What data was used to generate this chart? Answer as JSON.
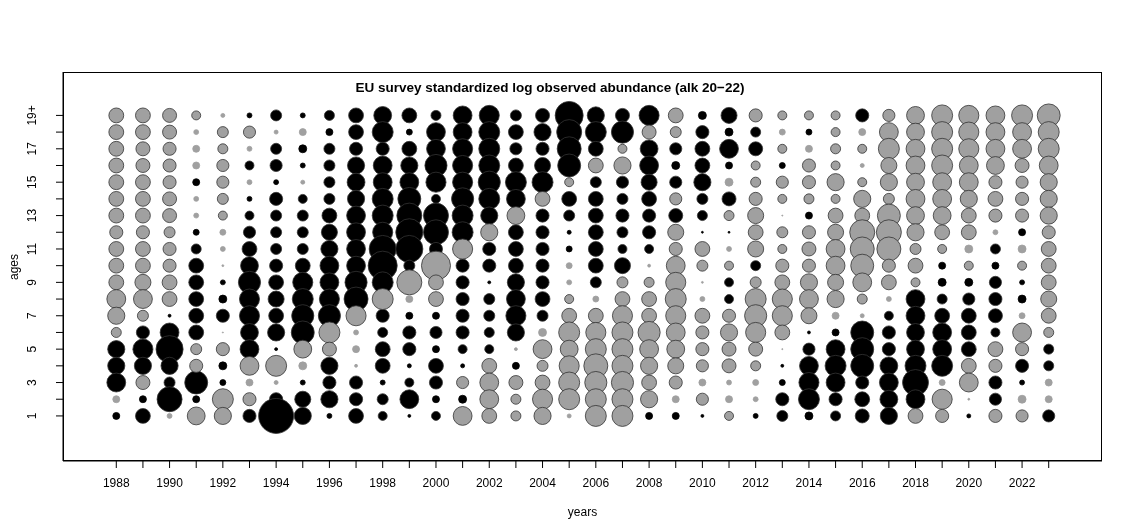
{
  "chart_data": {
    "type": "bubble",
    "title": "EU survey standardized log observed abundance (alk 20−22)",
    "xlabel": "years",
    "ylabel": "ages",
    "xlim": [
      1986,
      2025
    ],
    "xticks": [
      1988,
      {
        "value": 1989,
        "label": null
      },
      1990,
      {
        "value": 1991,
        "label": null
      },
      1992,
      {
        "value": 1993,
        "label": null
      },
      1994,
      {
        "value": 1995,
        "label": null
      },
      1996,
      {
        "value": 1997,
        "label": null
      },
      1998,
      {
        "value": 1999,
        "label": null
      },
      2000,
      {
        "value": 2001,
        "label": null
      },
      2002,
      {
        "value": 2003,
        "label": null
      },
      2004,
      {
        "value": 2005,
        "label": null
      },
      2006,
      {
        "value": 2007,
        "label": null
      },
      2008,
      {
        "value": 2009,
        "label": null
      },
      2010,
      {
        "value": 2011,
        "label": null
      },
      2012,
      {
        "value": 2013,
        "label": null
      },
      2014,
      {
        "value": 2015,
        "label": null
      },
      2016,
      {
        "value": 2017,
        "label": null
      },
      2018,
      {
        "value": 2019,
        "label": null
      },
      2020,
      {
        "value": 2021,
        "label": null
      },
      2022,
      {
        "value": 2023,
        "label": null
      }
    ],
    "ylim": [
      -1.7,
      21.6
    ],
    "yticks": [
      1,
      {
        "value": 2,
        "label": null
      },
      3,
      {
        "value": 4,
        "label": null
      },
      5,
      {
        "value": 6,
        "label": null
      },
      7,
      {
        "value": 8,
        "label": null
      },
      9,
      {
        "value": 10,
        "label": null
      },
      11,
      {
        "value": 12,
        "label": null
      },
      13,
      {
        "value": 14,
        "label": null
      },
      15,
      {
        "value": 16,
        "label": null
      },
      17,
      {
        "value": 18,
        "label": null
      },
      {
        "value": 19,
        "label": "19+"
      }
    ],
    "marker": "circle",
    "series": [
      {
        "color": "#000000",
        "x": [
          1988,
          1988,
          1988,
          1988,
          1989,
          1989,
          1989,
          1989,
          1989,
          1990,
          1990,
          1990,
          1990,
          1990,
          1990,
          1991,
          1991,
          1991,
          1991,
          1991,
          1991,
          1991,
          1991,
          1991,
          1991,
          1992,
          1992,
          1992,
          1992,
          1992,
          1993,
          1993,
          1993,
          1993,
          1993,
          1993,
          1993,
          1993,
          1993,
          1993,
          1993,
          1993,
          1993,
          1994,
          1994,
          1994,
          1994,
          1994,
          1994,
          1994,
          1994,
          1994,
          1994,
          1994,
          1994,
          1994,
          1994,
          1994,
          1994,
          1995,
          1995,
          1995,
          1995,
          1995,
          1995,
          1995,
          1995,
          1995,
          1995,
          1995,
          1995,
          1995,
          1995,
          1995,
          1996,
          1996,
          1996,
          1996,
          1996,
          1996,
          1996,
          1996,
          1996,
          1996,
          1996,
          1996,
          1996,
          1996,
          1996,
          1996,
          1996,
          1997,
          1997,
          1997,
          1997,
          1997,
          1997,
          1997,
          1997,
          1997,
          1997,
          1997,
          1997,
          1997,
          1997,
          1997,
          1998,
          1998,
          1998,
          1998,
          1998,
          1998,
          1998,
          1998,
          1998,
          1998,
          1998,
          1998,
          1998,
          1998,
          1998,
          1998,
          1998,
          1998,
          1999,
          1999,
          1999,
          1999,
          1999,
          1999,
          1999,
          1999,
          1999,
          1999,
          1999,
          1999,
          1999,
          1999,
          1999,
          1999,
          1999,
          2000,
          2000,
          2000,
          2000,
          2000,
          2000,
          2000,
          2000,
          2000,
          2000,
          2000,
          2000,
          2000,
          2000,
          2000,
          2000,
          2001,
          2001,
          2001,
          2001,
          2001,
          2001,
          2001,
          2001,
          2001,
          2001,
          2001,
          2001,
          2001,
          2001,
          2001,
          2001,
          2002,
          2002,
          2002,
          2002,
          2002,
          2002,
          2002,
          2002,
          2002,
          2002,
          2002,
          2002,
          2002,
          2002,
          2003,
          2003,
          2003,
          2003,
          2003,
          2003,
          2003,
          2003,
          2003,
          2003,
          2003,
          2003,
          2003,
          2003,
          2004,
          2004,
          2004,
          2004,
          2004,
          2004,
          2004,
          2004,
          2004,
          2004,
          2004,
          2004,
          2005,
          2005,
          2005,
          2005,
          2005,
          2005,
          2005,
          2005,
          2006,
          2006,
          2006,
          2006,
          2006,
          2006,
          2006,
          2006,
          2006,
          2006,
          2007,
          2007,
          2007,
          2007,
          2007,
          2007,
          2007,
          2007,
          2008,
          2008,
          2008,
          2008,
          2008,
          2008,
          2008,
          2008,
          2008,
          2009,
          2009,
          2009,
          2009,
          2009,
          2010,
          2010,
          2010,
          2010,
          2010,
          2010,
          2010,
          2010,
          2010,
          2011,
          2011,
          2011,
          2011,
          2011,
          2011,
          2011,
          2011,
          2012,
          2012,
          2012,
          2012,
          2013,
          2013,
          2013,
          2013,
          2013,
          2014,
          2014,
          2014,
          2014,
          2014,
          2014,
          2014,
          2014,
          2015,
          2015,
          2015,
          2015,
          2015,
          2015,
          2016,
          2016,
          2016,
          2016,
          2016,
          2016,
          2016,
          2017,
          2017,
          2017,
          2017,
          2017,
          2017,
          2017,
          2018,
          2018,
          2018,
          2018,
          2018,
          2018,
          2018,
          2019,
          2019,
          2019,
          2019,
          2019,
          2019,
          2019,
          2020,
          2020,
          2020,
          2020,
          2020,
          2020,
          2021,
          2021,
          2021,
          2021,
          2021,
          2021,
          2021,
          2021,
          2022,
          2022,
          2022,
          2022,
          2022,
          2023,
          2023,
          2023
        ],
        "values": [
          5,
          4,
          3,
          1,
          6,
          5,
          4,
          2,
          1,
          7,
          6,
          5,
          4,
          3,
          2,
          15,
          12,
          11,
          10,
          9,
          8,
          7,
          6,
          3,
          2,
          9,
          8,
          7,
          4,
          3,
          19,
          16,
          14,
          13,
          12,
          11,
          10,
          9,
          8,
          7,
          6,
          5,
          1,
          19,
          17,
          16,
          15,
          14,
          13,
          12,
          11,
          10,
          9,
          8,
          7,
          6,
          5,
          2,
          1,
          19,
          17,
          16,
          14,
          13,
          12,
          11,
          10,
          9,
          8,
          7,
          6,
          3,
          2,
          1,
          19,
          18,
          17,
          16,
          15,
          14,
          13,
          12,
          11,
          10,
          9,
          8,
          7,
          4,
          3,
          2,
          1,
          19,
          18,
          17,
          16,
          15,
          14,
          13,
          12,
          11,
          10,
          9,
          8,
          3,
          2,
          1,
          19,
          18,
          17,
          16,
          15,
          14,
          13,
          12,
          11,
          10,
          9,
          7,
          6,
          5,
          4,
          3,
          2,
          1,
          19,
          18,
          17,
          16,
          15,
          14,
          13,
          12,
          11,
          10,
          7,
          6,
          5,
          4,
          3,
          2,
          1,
          19,
          18,
          17,
          16,
          15,
          14,
          13,
          12,
          11,
          7,
          6,
          5,
          4,
          3,
          2,
          1,
          19,
          18,
          17,
          16,
          15,
          14,
          13,
          12,
          10,
          9,
          8,
          7,
          6,
          5,
          4,
          2,
          19,
          18,
          17,
          16,
          15,
          14,
          13,
          11,
          10,
          9,
          8,
          7,
          6,
          5,
          19,
          18,
          17,
          16,
          15,
          14,
          12,
          11,
          10,
          9,
          8,
          7,
          6,
          4,
          19,
          18,
          17,
          16,
          15,
          13,
          12,
          11,
          10,
          9,
          8,
          7,
          19,
          18,
          17,
          16,
          14,
          13,
          12,
          11,
          19,
          18,
          17,
          15,
          14,
          13,
          12,
          11,
          10,
          9,
          19,
          18,
          15,
          14,
          13,
          12,
          11,
          10,
          19,
          17,
          16,
          15,
          14,
          13,
          12,
          11,
          1,
          17,
          16,
          15,
          13,
          1,
          19,
          18,
          17,
          16,
          15,
          14,
          13,
          12,
          1,
          19,
          18,
          17,
          16,
          14,
          12,
          9,
          8,
          18,
          17,
          10,
          1,
          16,
          4,
          3,
          2,
          1,
          18,
          13,
          6,
          5,
          4,
          3,
          2,
          1,
          6,
          5,
          4,
          3,
          2,
          1,
          19,
          6,
          5,
          4,
          3,
          2,
          1,
          7,
          6,
          5,
          4,
          3,
          2,
          1,
          8,
          7,
          6,
          5,
          4,
          3,
          2,
          10,
          9,
          8,
          7,
          6,
          5,
          4,
          9,
          8,
          7,
          6,
          5,
          1,
          11,
          10,
          9,
          8,
          7,
          6,
          3,
          2,
          12,
          9,
          8,
          4,
          3,
          5,
          4,
          1
        ],
        "sizes": [
          0.24,
          0.24,
          0.29,
          0.04,
          0.14,
          0.33,
          0.24,
          0.04,
          0.18,
          0.007,
          0.29,
          0.6,
          0.24,
          0.099,
          0.51,
          0.04,
          0.029,
          0.082,
          0.18,
          0.18,
          0.18,
          0.18,
          0.18,
          0.43,
          0.04,
          0.02,
          0.052,
          0.14,
          0.052,
          0.029,
          0.02,
          0.066,
          0.02,
          0.066,
          0.12,
          0.18,
          0.26,
          0.4,
          0.33,
          0.33,
          0.26,
          0.29,
          0.14,
          0.099,
          0.099,
          0.12,
          0.02,
          0.14,
          0.099,
          0.099,
          0.099,
          0.14,
          0.18,
          0.21,
          0.18,
          0.24,
          0.007,
          0.14,
          1,
          0.02,
          0.052,
          0.02,
          0.066,
          0.099,
          0.099,
          0.099,
          0.18,
          0.33,
          0.36,
          0.4,
          0.43,
          0.02,
          0.21,
          0.24,
          0.082,
          0.04,
          0.099,
          0.099,
          0.099,
          0.099,
          0.18,
          0.21,
          0.24,
          0.29,
          0.29,
          0.33,
          0.4,
          0.24,
          0.14,
          0.24,
          0.02,
          0.18,
          0.18,
          0.14,
          0.24,
          0.26,
          0.24,
          0.29,
          0.29,
          0.29,
          0.29,
          0.4,
          0.47,
          0.14,
          0.14,
          0.18,
          0.26,
          0.36,
          0.14,
          0.29,
          0.29,
          0.36,
          0.36,
          0.33,
          0.6,
          0.69,
          0.36,
          0.14,
          0.082,
          0.18,
          0.18,
          0.02,
          0.099,
          0.066,
          0.18,
          0.029,
          0.18,
          0.24,
          0.29,
          0.43,
          0.51,
          0.6,
          0.6,
          0.099,
          0.04,
          0.14,
          0.14,
          0.013,
          0.066,
          0.29,
          0.007,
          0.082,
          0.29,
          0.29,
          0.4,
          0.33,
          0.066,
          0.51,
          0.51,
          0.14,
          0.04,
          0.12,
          0.04,
          0.18,
          0.14,
          0.04,
          0.066,
          0.29,
          0.29,
          0.33,
          0.33,
          0.33,
          0.4,
          0.36,
          0.36,
          0.14,
          0.14,
          0.14,
          0.14,
          0.14,
          0.066,
          0.013,
          0.052,
          0.33,
          0.36,
          0.36,
          0.36,
          0.4,
          0.36,
          0.24,
          0.14,
          0.14,
          0.007,
          0.099,
          0.099,
          0.082,
          0.066,
          0.099,
          0.18,
          0.12,
          0.18,
          0.36,
          0.29,
          0.18,
          0.18,
          0.18,
          0.24,
          0.29,
          0.33,
          0.24,
          0.04,
          0.16,
          0.24,
          0.14,
          0.21,
          0.36,
          0.14,
          0.14,
          0.14,
          0.14,
          0.14,
          0.18,
          0.099,
          0.64,
          0.51,
          0.47,
          0.43,
          0.18,
          0.099,
          0.013,
          0.029,
          0.24,
          0.36,
          0.18,
          0.099,
          0.18,
          0.18,
          0.18,
          0.18,
          0.18,
          0.099,
          0.16,
          0.4,
          0.12,
          0.099,
          0.14,
          0.099,
          0.066,
          0.21,
          0.33,
          0.26,
          0.29,
          0.21,
          0.18,
          0.14,
          0.14,
          0.066,
          0.04,
          0.12,
          0.052,
          0.12,
          0.16,
          0.04,
          0.052,
          0.14,
          0.18,
          0.18,
          0.24,
          0.099,
          0.082,
          0.003,
          0.007,
          0.21,
          0.052,
          0.29,
          0.04,
          0.16,
          0.003,
          0.066,
          0.066,
          0.082,
          0.16,
          0.082,
          0.02,
          0.029,
          0.007,
          0.029,
          0.14,
          0.099,
          0.029,
          0.04,
          0.007,
          0.12,
          0.29,
          0.33,
          0.36,
          0.052,
          0.04,
          0.29,
          0.36,
          0.29,
          0.14,
          0.082,
          0.14,
          0.43,
          0.43,
          0.43,
          0.14,
          0.18,
          0.16,
          0.066,
          0.14,
          0.14,
          0.26,
          0.29,
          0.26,
          0.24,
          0.29,
          0.29,
          0.26,
          0.26,
          0.36,
          0.55,
          0.29,
          0.04,
          0.052,
          0.082,
          0.18,
          0.29,
          0.29,
          0.36,
          0.052,
          0.12,
          0.18,
          0.18,
          0.18,
          0.013,
          0.082,
          0.04,
          0.12,
          0.14,
          0.16,
          0.066,
          0.14,
          0.12,
          0.04,
          0.02,
          0.052,
          0.14,
          0.02,
          0.082,
          0.082,
          0.12
        ]
      },
      {
        "color": "#a0a0a0",
        "x": [
          1988,
          1988,
          1988,
          1988,
          1988,
          1988,
          1988,
          1988,
          1988,
          1988,
          1988,
          1988,
          1988,
          1988,
          1988,
          1989,
          1989,
          1989,
          1989,
          1989,
          1989,
          1989,
          1989,
          1989,
          1989,
          1989,
          1989,
          1989,
          1989,
          1990,
          1990,
          1990,
          1990,
          1990,
          1990,
          1990,
          1990,
          1990,
          1990,
          1990,
          1990,
          1990,
          1991,
          1991,
          1991,
          1991,
          1991,
          1991,
          1991,
          1991,
          1991,
          1992,
          1992,
          1992,
          1992,
          1992,
          1992,
          1992,
          1992,
          1992,
          1992,
          1992,
          1992,
          1992,
          1992,
          1993,
          1993,
          1993,
          1993,
          1993,
          1993,
          1994,
          1994,
          1994,
          1995,
          1995,
          1995,
          1995,
          1996,
          1996,
          1997,
          1997,
          1997,
          1997,
          1998,
          1999,
          1999,
          2000,
          2000,
          2000,
          2001,
          2001,
          2001,
          2002,
          2002,
          2002,
          2002,
          2002,
          2003,
          2003,
          2003,
          2003,
          2003,
          2004,
          2004,
          2004,
          2004,
          2004,
          2004,
          2004,
          2005,
          2005,
          2005,
          2005,
          2005,
          2005,
          2005,
          2005,
          2005,
          2005,
          2005,
          2006,
          2006,
          2006,
          2006,
          2006,
          2006,
          2006,
          2006,
          2006,
          2007,
          2007,
          2007,
          2007,
          2007,
          2007,
          2007,
          2007,
          2007,
          2007,
          2007,
          2008,
          2008,
          2008,
          2008,
          2008,
          2008,
          2008,
          2008,
          2008,
          2008,
          2009,
          2009,
          2009,
          2009,
          2009,
          2009,
          2009,
          2009,
          2009,
          2009,
          2009,
          2009,
          2009,
          2009,
          2010,
          2010,
          2010,
          2010,
          2010,
          2010,
          2010,
          2010,
          2010,
          2010,
          2011,
          2011,
          2011,
          2011,
          2011,
          2011,
          2011,
          2011,
          2011,
          2011,
          2011,
          2012,
          2012,
          2012,
          2012,
          2012,
          2012,
          2012,
          2012,
          2012,
          2012,
          2012,
          2012,
          2012,
          2012,
          2012,
          2013,
          2013,
          2013,
          2013,
          2013,
          2013,
          2013,
          2013,
          2013,
          2013,
          2013,
          2013,
          2013,
          2013,
          2014,
          2014,
          2014,
          2014,
          2014,
          2014,
          2014,
          2014,
          2014,
          2014,
          2014,
          2015,
          2015,
          2015,
          2015,
          2015,
          2015,
          2015,
          2015,
          2015,
          2015,
          2015,
          2015,
          2015,
          2016,
          2016,
          2016,
          2016,
          2016,
          2016,
          2016,
          2016,
          2016,
          2016,
          2016,
          2016,
          2017,
          2017,
          2017,
          2017,
          2017,
          2017,
          2017,
          2017,
          2017,
          2017,
          2017,
          2017,
          2018,
          2018,
          2018,
          2018,
          2018,
          2018,
          2018,
          2018,
          2018,
          2018,
          2018,
          2018,
          2019,
          2019,
          2019,
          2019,
          2019,
          2019,
          2019,
          2019,
          2019,
          2019,
          2019,
          2019,
          2020,
          2020,
          2020,
          2020,
          2020,
          2020,
          2020,
          2020,
          2020,
          2020,
          2020,
          2020,
          2020,
          2021,
          2021,
          2021,
          2021,
          2021,
          2021,
          2021,
          2021,
          2021,
          2021,
          2021,
          2022,
          2022,
          2022,
          2022,
          2022,
          2022,
          2022,
          2022,
          2022,
          2022,
          2022,
          2022,
          2022,
          2022,
          2023,
          2023,
          2023,
          2023,
          2023,
          2023,
          2023,
          2023,
          2023,
          2023,
          2023,
          2023,
          2023,
          2023,
          2023,
          2023
        ],
        "values": [
          19,
          18,
          17,
          16,
          15,
          14,
          13,
          12,
          11,
          10,
          9,
          8,
          7,
          6,
          2,
          19,
          18,
          17,
          16,
          15,
          14,
          13,
          12,
          11,
          10,
          9,
          8,
          7,
          3,
          19,
          18,
          17,
          16,
          15,
          14,
          13,
          12,
          11,
          10,
          9,
          8,
          1,
          19,
          18,
          17,
          16,
          14,
          13,
          5,
          4,
          1,
          19,
          18,
          17,
          16,
          15,
          14,
          13,
          12,
          11,
          10,
          6,
          5,
          2,
          1,
          18,
          17,
          15,
          4,
          3,
          2,
          18,
          4,
          3,
          18,
          15,
          5,
          4,
          6,
          5,
          7,
          6,
          5,
          4,
          8,
          9,
          8,
          10,
          9,
          8,
          11,
          3,
          1,
          12,
          4,
          3,
          2,
          1,
          13,
          5,
          3,
          2,
          1,
          14,
          6,
          5,
          4,
          3,
          2,
          1,
          15,
          10,
          9,
          8,
          7,
          6,
          5,
          4,
          3,
          2,
          1,
          16,
          8,
          7,
          6,
          5,
          4,
          3,
          2,
          1,
          17,
          16,
          9,
          8,
          7,
          6,
          5,
          4,
          3,
          2,
          1,
          18,
          10,
          9,
          8,
          7,
          6,
          5,
          4,
          3,
          2,
          19,
          18,
          14,
          12,
          11,
          10,
          9,
          8,
          7,
          6,
          5,
          4,
          3,
          2,
          11,
          10,
          9,
          8,
          7,
          6,
          5,
          4,
          3,
          2,
          15,
          13,
          11,
          10,
          7,
          6,
          5,
          4,
          3,
          2,
          1,
          19,
          16,
          15,
          14,
          13,
          12,
          11,
          9,
          8,
          7,
          6,
          5,
          4,
          3,
          2,
          19,
          18,
          17,
          15,
          14,
          13,
          12,
          11,
          10,
          9,
          8,
          7,
          6,
          5,
          19,
          17,
          16,
          15,
          14,
          12,
          11,
          10,
          9,
          8,
          7,
          19,
          18,
          17,
          16,
          15,
          14,
          13,
          12,
          11,
          10,
          9,
          8,
          7,
          18,
          17,
          16,
          15,
          14,
          13,
          12,
          11,
          10,
          9,
          8,
          7,
          19,
          18,
          17,
          16,
          15,
          14,
          13,
          12,
          11,
          10,
          9,
          8,
          19,
          18,
          17,
          16,
          15,
          14,
          13,
          12,
          11,
          10,
          9,
          1,
          19,
          18,
          17,
          16,
          15,
          14,
          13,
          12,
          11,
          3,
          2,
          1,
          19,
          18,
          17,
          16,
          15,
          14,
          13,
          12,
          11,
          10,
          4,
          3,
          2,
          19,
          18,
          17,
          16,
          15,
          14,
          13,
          12,
          5,
          4,
          1,
          19,
          18,
          17,
          16,
          15,
          14,
          13,
          11,
          10,
          7,
          6,
          5,
          2,
          1,
          19,
          18,
          17,
          16,
          15,
          14,
          13,
          12,
          11,
          10,
          9,
          8,
          7,
          6,
          3,
          2
        ],
        "sizes": [
          0.18,
          0.18,
          0.18,
          0.18,
          0.18,
          0.18,
          0.18,
          0.14,
          0.18,
          0.18,
          0.18,
          0.29,
          0.24,
          0.082,
          0.04,
          0.18,
          0.18,
          0.16,
          0.16,
          0.18,
          0.18,
          0.18,
          0.14,
          0.18,
          0.18,
          0.21,
          0.29,
          0.099,
          0.16,
          0.16,
          0.16,
          0.14,
          0.14,
          0.14,
          0.16,
          0.16,
          0.099,
          0.14,
          0.14,
          0.18,
          0.18,
          0.02,
          0.066,
          0.02,
          0.04,
          0.04,
          0.02,
          0.02,
          0.099,
          0.14,
          0.26,
          0.013,
          0.099,
          0.082,
          0.12,
          0.12,
          0.099,
          0.066,
          0.029,
          0.02,
          0.003,
          0.001,
          0.14,
          0.36,
          0.24,
          0.12,
          0.02,
          0.02,
          0.29,
          0.04,
          0.14,
          0.013,
          0.36,
          0.013,
          0.04,
          0.013,
          0.26,
          0.052,
          0.36,
          0.16,
          0.33,
          0.02,
          0.04,
          0.007,
          0.36,
          0.51,
          0.04,
          0.69,
          0.18,
          0.18,
          0.33,
          0.12,
          0.29,
          0.24,
          0.18,
          0.29,
          0.29,
          0.18,
          0.26,
          0.007,
          0.16,
          0.082,
          0.082,
          0.18,
          0.052,
          0.29,
          0.099,
          0.18,
          0.33,
          0.24,
          0.066,
          0.029,
          0.02,
          0.066,
          0.18,
          0.36,
          0.26,
          0.33,
          0.36,
          0.36,
          0.013,
          0.18,
          0.029,
          0.18,
          0.33,
          0.36,
          0.47,
          0.4,
          0.36,
          0.36,
          0.066,
          0.24,
          0.099,
          0.18,
          0.33,
          0.36,
          0.36,
          0.36,
          0.4,
          0.36,
          0.36,
          0.16,
          0.007,
          0.082,
          0.18,
          0.18,
          0.4,
          0.29,
          0.24,
          0.18,
          0.24,
          0.18,
          0.099,
          0.12,
          0.21,
          0.14,
          0.29,
          0.33,
          0.36,
          0.33,
          0.29,
          0.26,
          0.21,
          0.14,
          0.04,
          0.18,
          0.099,
          0.003,
          0.02,
          0.18,
          0.14,
          0.14,
          0.12,
          0.04,
          0.12,
          0.052,
          0.082,
          0.02,
          0.066,
          0.14,
          0.24,
          0.16,
          0.16,
          0.02,
          0.04,
          0.066,
          0.14,
          0.066,
          0.082,
          0.14,
          0.21,
          0.18,
          0.21,
          0.099,
          0.36,
          0.4,
          0.33,
          0.16,
          0.082,
          0.029,
          0.02,
          0.066,
          0.029,
          0.066,
          0.12,
          0.066,
          0.001,
          0.099,
          0.066,
          0.14,
          0.18,
          0.33,
          0.33,
          0.18,
          0.001,
          0.066,
          0.04,
          0.14,
          0.14,
          0.082,
          0.14,
          0.16,
          0.14,
          0.24,
          0.29,
          0.21,
          0.066,
          0.066,
          0.082,
          0.066,
          0.24,
          0.066,
          0.18,
          0.21,
          0.29,
          0.29,
          0.21,
          0.24,
          0.04,
          0.04,
          0.066,
          0.013,
          0.066,
          0.24,
          0.18,
          0.51,
          0.47,
          0.43,
          0.29,
          0.082,
          0.013,
          0.12,
          0.29,
          0.36,
          0.21,
          0.24,
          0.099,
          0.43,
          0.51,
          0.47,
          0.14,
          0.18,
          0.02,
          0.26,
          0.26,
          0.29,
          0.29,
          0.26,
          0.29,
          0.26,
          0.24,
          0.099,
          0.18,
          0.066,
          0.18,
          0.36,
          0.36,
          0.36,
          0.36,
          0.29,
          0.29,
          0.26,
          0.18,
          0.066,
          0.029,
          0.33,
          0.14,
          0.33,
          0.33,
          0.33,
          0.29,
          0.29,
          0.24,
          0.18,
          0.18,
          0.052,
          0.066,
          0.18,
          0.29,
          0.003,
          0.29,
          0.29,
          0.29,
          0.26,
          0.14,
          0.18,
          0.14,
          0.02,
          0.18,
          0.14,
          0.14,
          0.36,
          0.29,
          0.29,
          0.16,
          0.12,
          0.14,
          0.14,
          0.052,
          0.066,
          0.029,
          0.29,
          0.14,
          0.052,
          0.12,
          0.43,
          0.36,
          0.36,
          0.29,
          0.24,
          0.24,
          0.24,
          0.14,
          0.18,
          0.18,
          0.18,
          0.21,
          0.18,
          0.082,
          0.04,
          0.04
        ]
      }
    ]
  }
}
